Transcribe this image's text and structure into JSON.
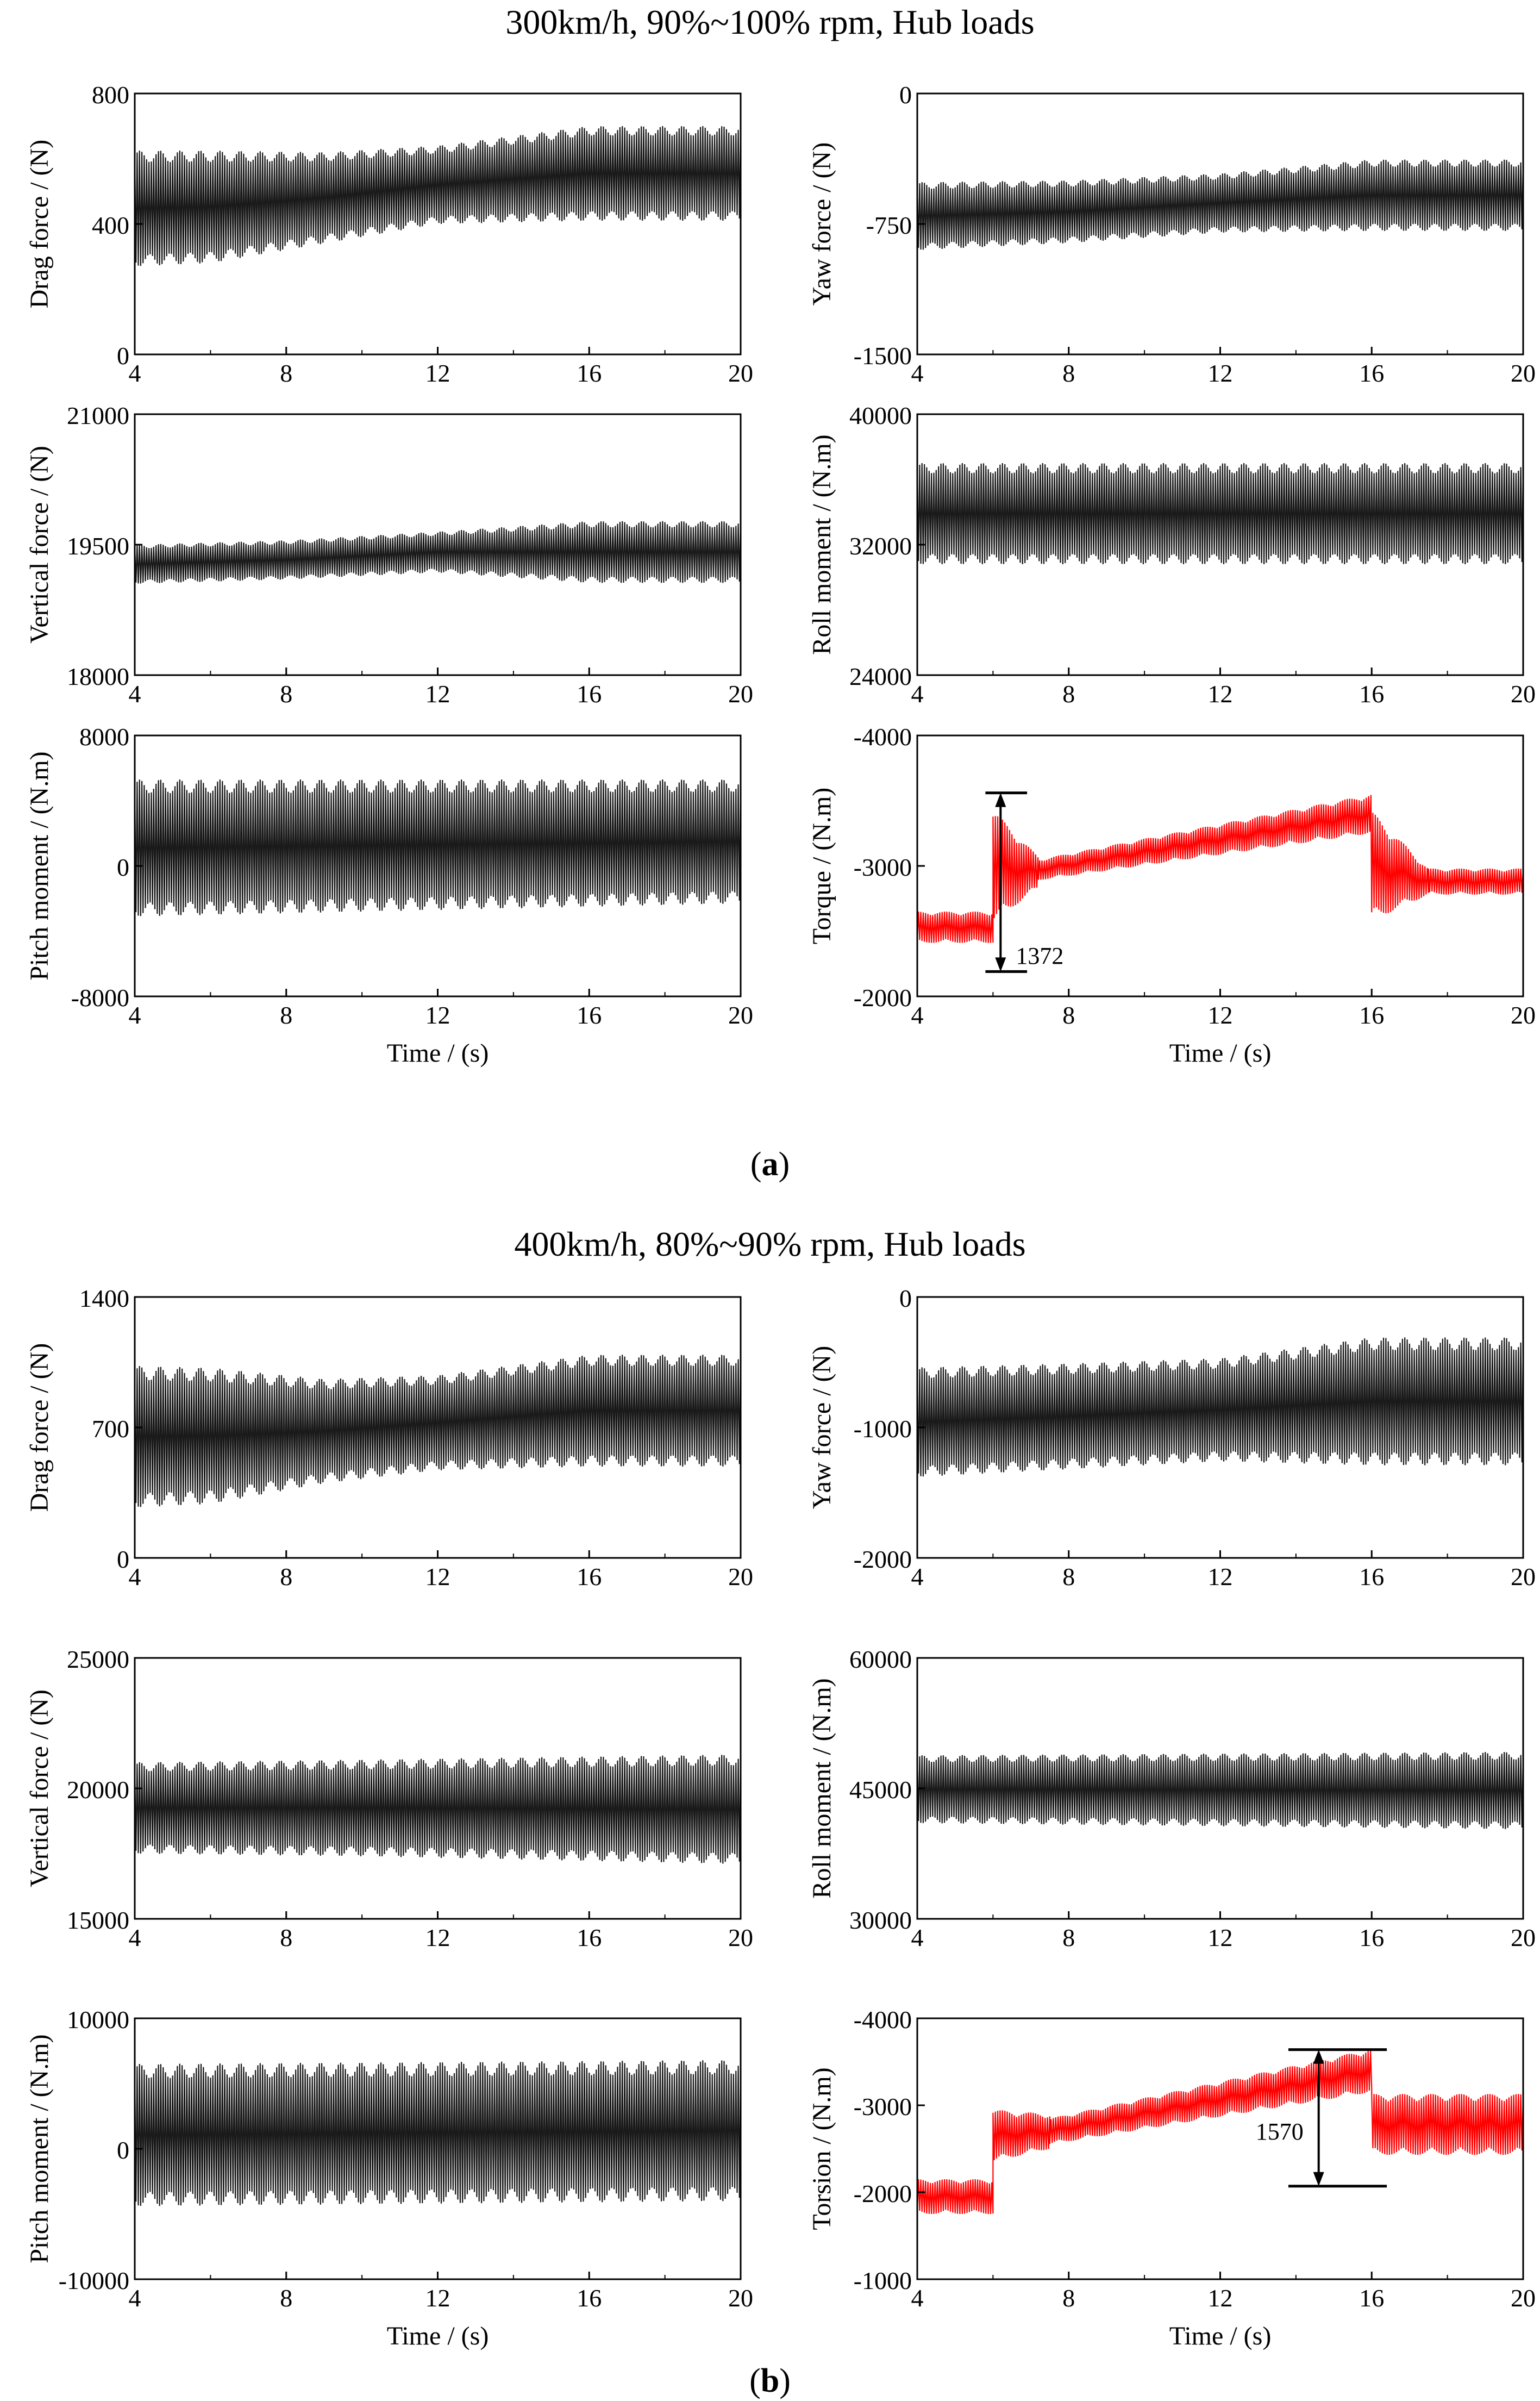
{
  "figure": {
    "panels": [
      {
        "id": "a",
        "title": "300km/h, 90%~100% rpm, Hub loads",
        "caption_letter": "a",
        "xlabel": "Time / (s)"
      },
      {
        "id": "b",
        "title": "400km/h, 80%~90% rpm, Hub loads",
        "caption_letter": "b",
        "xlabel": "Time / (s)"
      }
    ]
  },
  "colors": {
    "black_signal": "#1a1a1a",
    "red_signal": "#ff0000",
    "axis": "#000000"
  },
  "chart_data": [
    {
      "panel": "a",
      "type": "line",
      "ylabel": "Drag force / (N)",
      "xlim": [
        4,
        20
      ],
      "ylim": [
        0,
        800
      ],
      "yticks": [
        0,
        400,
        800
      ],
      "xticks": [
        4,
        8,
        12,
        16,
        20
      ],
      "color": "black",
      "env_t": [
        4,
        6,
        9,
        12,
        16,
        20
      ],
      "env_upper": [
        625,
        625,
        620,
        640,
        700,
        700
      ],
      "env_lower": [
        270,
        280,
        340,
        400,
        410,
        410
      ],
      "cycles_per_s": 16
    },
    {
      "panel": "a",
      "type": "line",
      "ylabel": "Yaw force / (N)",
      "xlim": [
        4,
        20
      ],
      "ylim": [
        -1500,
        0
      ],
      "yticks": [
        -1500,
        -750,
        0
      ],
      "xticks": [
        4,
        8,
        12,
        16,
        20
      ],
      "color": "black",
      "env_t": [
        4,
        8,
        12,
        16,
        20
      ],
      "env_upper": [
        -510,
        -500,
        -460,
        -380,
        -380
      ],
      "env_lower": [
        -900,
        -860,
        -800,
        -790,
        -790
      ],
      "cycles_per_s": 16
    },
    {
      "panel": "a",
      "type": "line",
      "ylabel": "Vertical force / (N)",
      "xlim": [
        4,
        20
      ],
      "ylim": [
        18000,
        21000
      ],
      "yticks": [
        18000,
        19500,
        21000
      ],
      "xticks": [
        4,
        8,
        12,
        16,
        20
      ],
      "color": "black",
      "env_t": [
        4,
        8,
        12,
        16,
        20
      ],
      "env_upper": [
        19500,
        19550,
        19650,
        19770,
        19770
      ],
      "env_lower": [
        19050,
        19100,
        19180,
        19060,
        19060
      ],
      "cycles_per_s": 16
    },
    {
      "panel": "a",
      "type": "line",
      "ylabel": "Roll moment / (N.m)",
      "xlim": [
        4,
        20
      ],
      "ylim": [
        24000,
        40000
      ],
      "yticks": [
        24000,
        32000,
        40000
      ],
      "xticks": [
        4,
        8,
        12,
        16,
        20
      ],
      "color": "black",
      "env_t": [
        4,
        20
      ],
      "env_upper": [
        37000,
        37000
      ],
      "env_lower": [
        30800,
        30800
      ],
      "cycles_per_s": 16
    },
    {
      "panel": "a",
      "type": "line",
      "ylabel": "Pitch moment / (N.m)",
      "xlim": [
        4,
        20
      ],
      "ylim": [
        -8000,
        8000
      ],
      "yticks": [
        -8000,
        0,
        8000
      ],
      "xticks": [
        4,
        8,
        12,
        16,
        20
      ],
      "color": "black",
      "env_t": [
        4,
        20
      ],
      "env_upper": [
        5300,
        5300
      ],
      "env_lower": [
        -3100,
        -2300
      ],
      "cycles_per_s": 16
    },
    {
      "panel": "a",
      "type": "line",
      "ylabel": "Torque / (N.m)",
      "xlim": [
        4,
        20
      ],
      "ylim": [
        -2000,
        -4000
      ],
      "yticks": [
        -4000,
        -3000,
        -2000
      ],
      "xticks": [
        4,
        8,
        12,
        16,
        20
      ],
      "color": "red",
      "segments": [
        {
          "t": [
            4,
            6
          ],
          "mid": [
            -2530,
            -2530
          ],
          "amp": [
            120,
            120
          ]
        },
        {
          "t": [
            6,
            7.2
          ],
          "mid": [
            -3000,
            -2950
          ],
          "amp": [
            430,
            120
          ]
        },
        {
          "t": [
            7.2,
            16
          ],
          "mid": [
            -2970,
            -3400
          ],
          "amp": [
            80,
            150
          ]
        },
        {
          "t": [
            16,
            17.5
          ],
          "mid": [
            -3000,
            -2880
          ],
          "amp": [
            420,
            100
          ]
        },
        {
          "t": [
            17.5,
            20
          ],
          "mid": [
            -2880,
            -2880
          ],
          "amp": [
            100,
            100
          ]
        }
      ],
      "cycles_per_s": 16,
      "annotation": {
        "label": "1372",
        "t": 6.2,
        "y_top": -3560,
        "y_bottom": -2190,
        "bar_t0": 5.8,
        "bar_t1": 6.9
      }
    },
    {
      "panel": "b",
      "type": "line",
      "ylabel": "Drag force / (N)",
      "xlim": [
        4,
        20
      ],
      "ylim": [
        0,
        1400
      ],
      "yticks": [
        0,
        700,
        1400
      ],
      "xticks": [
        4,
        8,
        12,
        16,
        20
      ],
      "color": "black",
      "env_t": [
        4,
        6,
        9,
        12,
        16,
        20
      ],
      "env_upper": [
        1030,
        1020,
        960,
        980,
        1090,
        1090
      ],
      "env_lower": [
        270,
        290,
        400,
        470,
        490,
        490
      ],
      "cycles_per_s": 16
    },
    {
      "panel": "b",
      "type": "line",
      "ylabel": "Yaw force / (N)",
      "xlim": [
        4,
        20
      ],
      "ylim": [
        -2000,
        0
      ],
      "yticks": [
        -2000,
        -1000,
        0
      ],
      "xticks": [
        4,
        8,
        12,
        16,
        20
      ],
      "color": "black",
      "env_t": [
        4,
        8,
        12,
        16,
        20
      ],
      "env_upper": [
        -540,
        -510,
        -470,
        -310,
        -310
      ],
      "env_lower": [
        -1380,
        -1320,
        -1260,
        -1290,
        -1290
      ],
      "cycles_per_s": 16
    },
    {
      "panel": "b",
      "type": "line",
      "ylabel": "Vertical force / (N)",
      "xlim": [
        4,
        20
      ],
      "ylim": [
        15000,
        25000
      ],
      "yticks": [
        15000,
        20000,
        25000
      ],
      "xticks": [
        4,
        8,
        12,
        16,
        20
      ],
      "color": "black",
      "env_t": [
        4,
        10,
        20
      ],
      "env_upper": [
        21000,
        21100,
        21300
      ],
      "env_lower": [
        17500,
        17400,
        17100
      ],
      "cycles_per_s": 16
    },
    {
      "panel": "b",
      "type": "line",
      "ylabel": "Roll moment / (N.m)",
      "xlim": [
        4,
        20
      ],
      "ylim": [
        30000,
        60000
      ],
      "yticks": [
        30000,
        45000,
        60000
      ],
      "xticks": [
        4,
        8,
        12,
        16,
        20
      ],
      "color": "black",
      "env_t": [
        4,
        20
      ],
      "env_upper": [
        48800,
        49200
      ],
      "env_lower": [
        41000,
        40300
      ],
      "cycles_per_s": 16
    },
    {
      "panel": "b",
      "type": "line",
      "ylabel": "Pitch moment / (N.m)",
      "xlim": [
        4,
        20
      ],
      "ylim": [
        -10000,
        10000
      ],
      "yticks": [
        -10000,
        0,
        10000
      ],
      "xticks": [
        4,
        8,
        12,
        16,
        20
      ],
      "color": "black",
      "env_t": [
        4,
        20
      ],
      "env_upper": [
        6500,
        6800
      ],
      "env_lower": [
        -4400,
        -4000
      ],
      "cycles_per_s": 16
    },
    {
      "panel": "b",
      "type": "line",
      "ylabel": "Torsion / (N.m)",
      "xlim": [
        4,
        20
      ],
      "ylim": [
        -1000,
        -4000
      ],
      "yticks": [
        -4000,
        -3000,
        -2000,
        -1000
      ],
      "xticks": [
        4,
        8,
        12,
        16,
        20
      ],
      "color": "red",
      "segments": [
        {
          "t": [
            4,
            6
          ],
          "mid": [
            -1950,
            -1950
          ],
          "amp": [
            200,
            200
          ]
        },
        {
          "t": [
            6,
            7.5
          ],
          "mid": [
            -2650,
            -2700
          ],
          "amp": [
            300,
            200
          ]
        },
        {
          "t": [
            7.5,
            16
          ],
          "mid": [
            -2700,
            -3400
          ],
          "amp": [
            150,
            250
          ]
        },
        {
          "t": [
            16,
            20
          ],
          "mid": [
            -2780,
            -2780
          ],
          "amp": [
            350,
            350
          ]
        }
      ],
      "cycles_per_s": 16,
      "annotation": {
        "label": "1570",
        "t": 14.6,
        "y_top": -3640,
        "y_bottom": -2070,
        "bar_t0": 13.8,
        "bar_t1": 16.4
      }
    }
  ]
}
